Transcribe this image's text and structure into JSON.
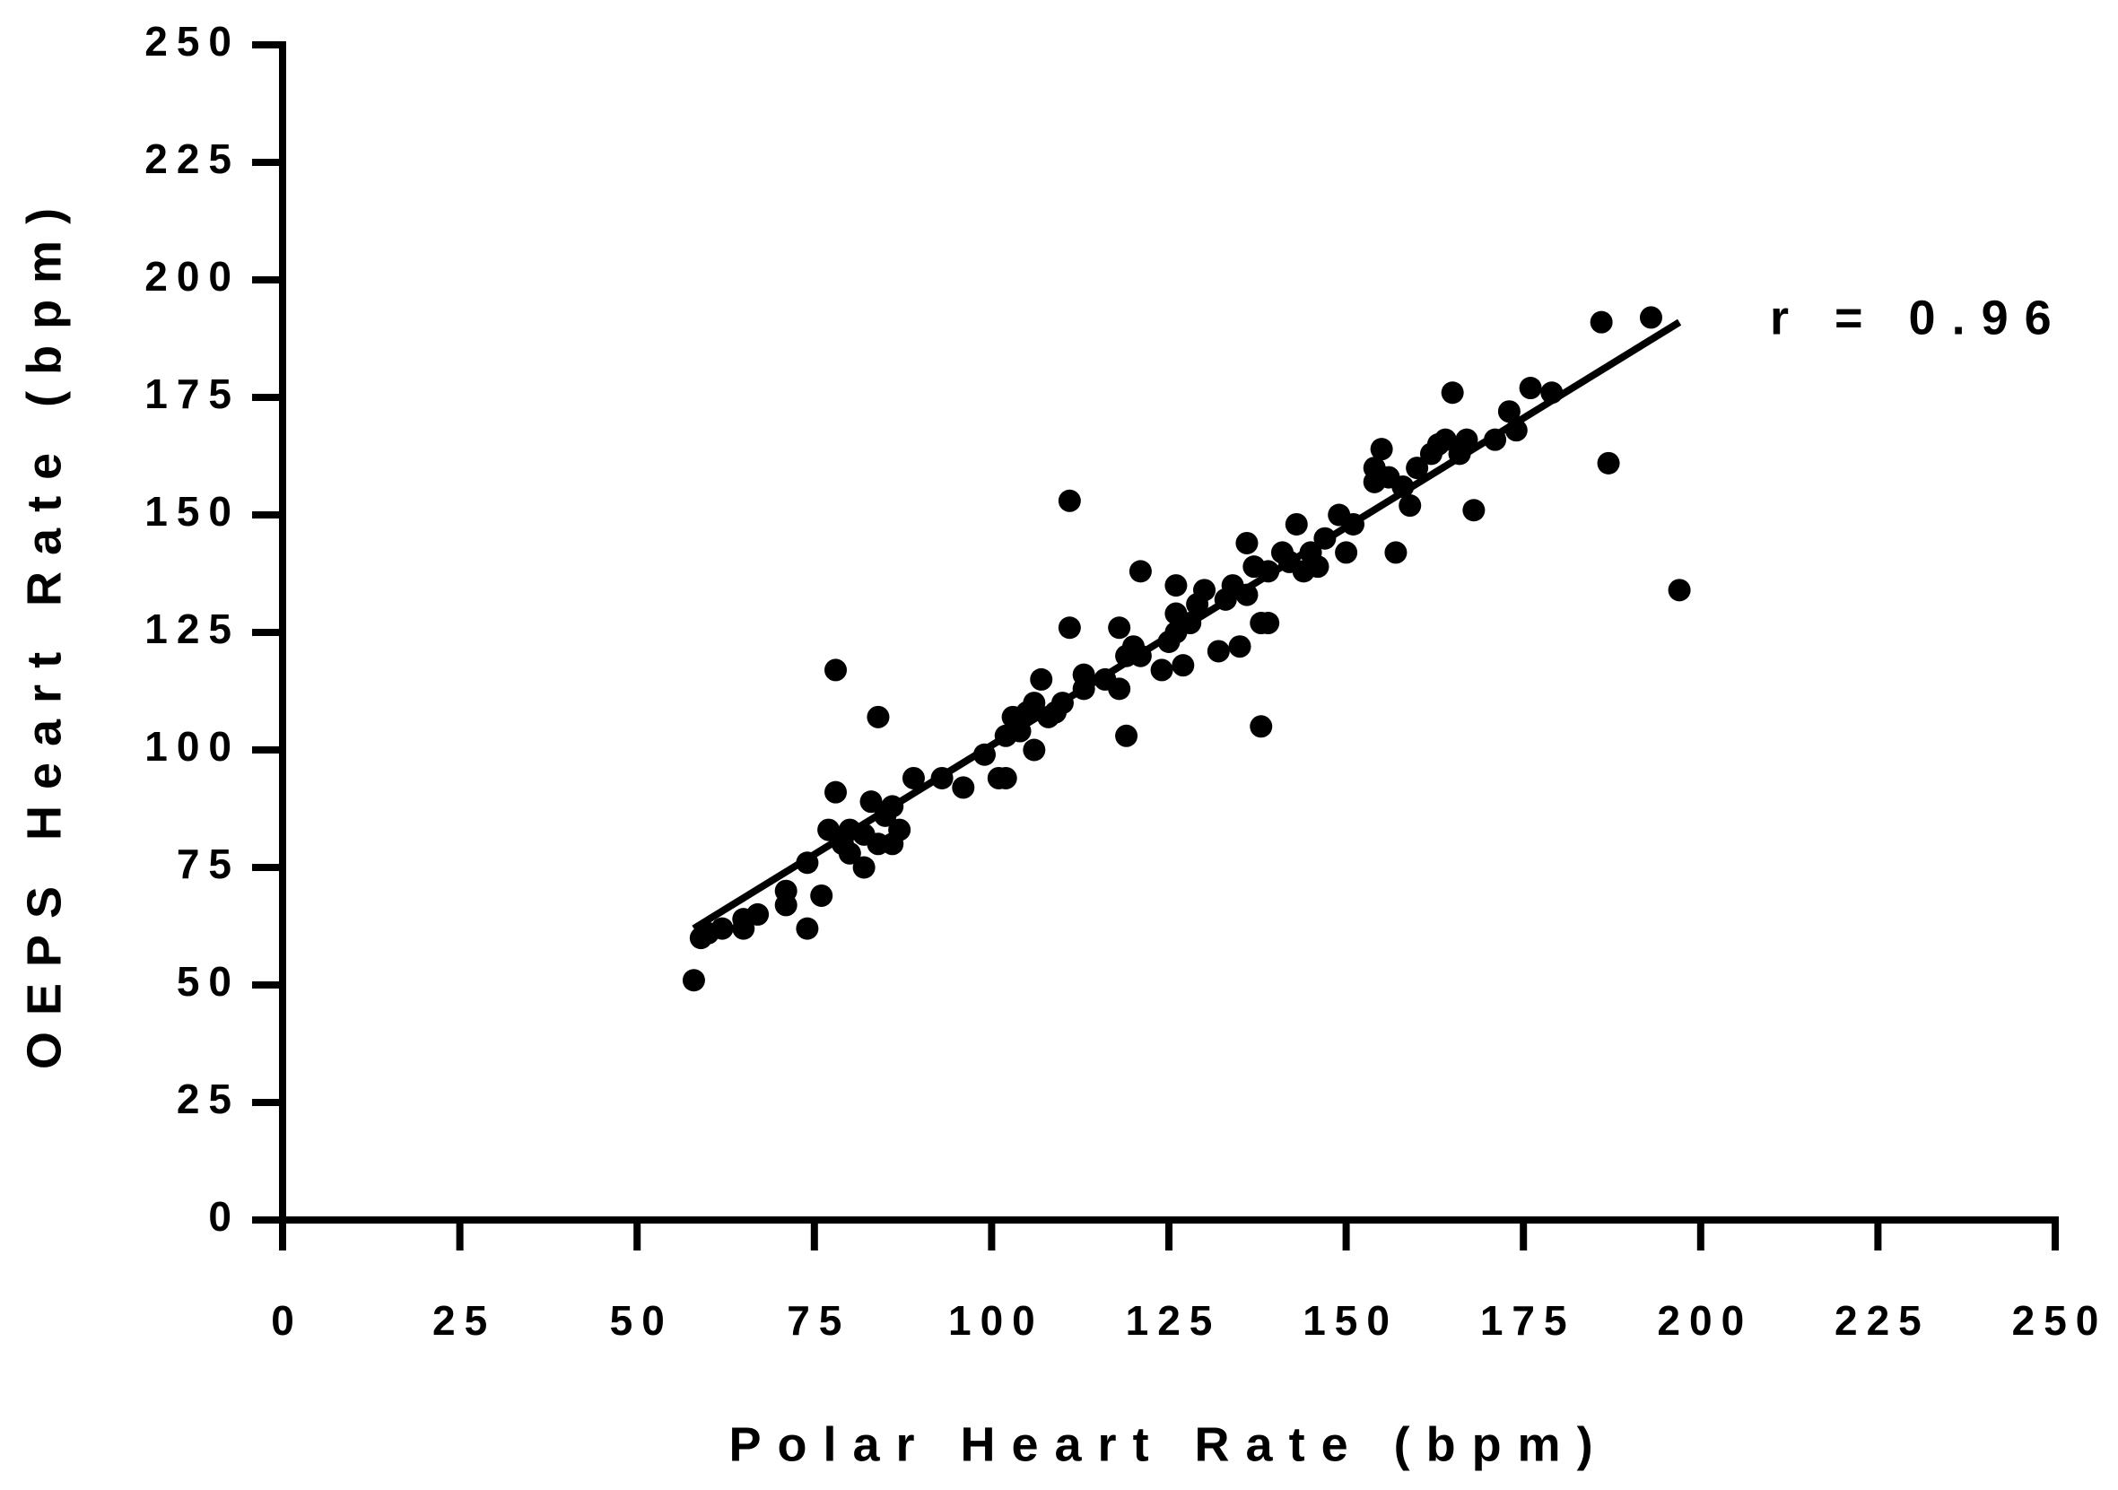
{
  "chart_data": {
    "type": "scatter",
    "x_label": "Polar Heart Rate (bpm)",
    "y_label": "OEPS Heart Rate (bpm)",
    "annotation": "r = 0.96",
    "color": "#000000",
    "xlim": [
      0,
      250
    ],
    "xticks": [
      0,
      25,
      50,
      75,
      100,
      125,
      150,
      175,
      200,
      225,
      250
    ],
    "ylim": [
      0,
      250
    ],
    "yticks": [
      0,
      25,
      50,
      75,
      100,
      125,
      150,
      175,
      200,
      225,
      250
    ],
    "grid": false,
    "x": [
      58,
      59,
      60,
      62,
      65,
      65,
      67,
      71,
      71,
      74,
      74,
      76,
      77,
      78,
      78,
      79,
      80,
      80,
      82,
      82,
      83,
      84,
      84,
      85,
      86,
      86,
      87,
      89,
      93,
      96,
      99,
      101,
      102,
      102,
      103,
      104,
      105,
      106,
      106,
      107,
      108,
      109,
      110,
      111,
      111,
      113,
      113,
      116,
      118,
      118,
      119,
      119,
      120,
      121,
      121,
      124,
      125,
      126,
      126,
      126,
      127,
      128,
      129,
      130,
      132,
      133,
      134,
      135,
      136,
      136,
      137,
      138,
      138,
      139,
      139,
      141,
      142,
      143,
      144,
      145,
      146,
      147,
      149,
      150,
      151,
      154,
      154,
      155,
      156,
      157,
      158,
      159,
      160,
      162,
      163,
      164,
      165,
      166,
      167,
      168,
      171,
      173,
      174,
      176,
      179,
      186,
      187,
      193,
      197
    ],
    "values": [
      51,
      60,
      61,
      62,
      62,
      64,
      65,
      67,
      70,
      62,
      76,
      69,
      83,
      91,
      117,
      80,
      78,
      83,
      75,
      82,
      89,
      107,
      80,
      86,
      80,
      88,
      83,
      94,
      94,
      92,
      99,
      94,
      94,
      103,
      107,
      104,
      108,
      100,
      110,
      115,
      107,
      108,
      110,
      153,
      126,
      116,
      113,
      115,
      113,
      126,
      103,
      120,
      122,
      138,
      120,
      117,
      123,
      125,
      129,
      135,
      118,
      127,
      131,
      134,
      121,
      132,
      135,
      122,
      133,
      144,
      139,
      105,
      127,
      127,
      138,
      142,
      140,
      148,
      138,
      142,
      139,
      145,
      150,
      142,
      148,
      157,
      160,
      164,
      158,
      142,
      156,
      152,
      160,
      163,
      165,
      166,
      176,
      163,
      166,
      151,
      166,
      172,
      168,
      177,
      176,
      191,
      161,
      192,
      134
    ],
    "fit_line": {
      "x": [
        58,
        197
      ],
      "values": [
        62,
        191
      ]
    }
  }
}
